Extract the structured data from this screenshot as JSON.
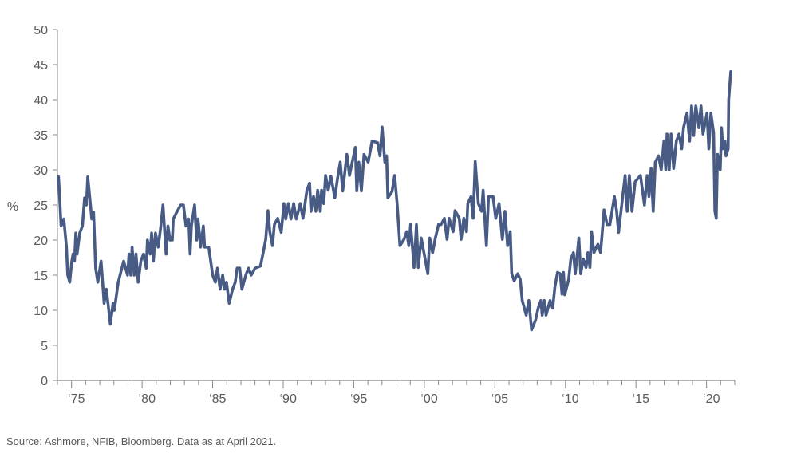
{
  "chart_data": {
    "type": "line",
    "title": "",
    "xlabel": "",
    "ylabel": "%",
    "xlim": [
      1974,
      2022
    ],
    "ylim": [
      0,
      50
    ],
    "yticks": [
      0,
      5,
      10,
      15,
      20,
      25,
      30,
      35,
      40,
      45,
      50
    ],
    "xtick_labels": [
      {
        "year": 1975,
        "label": "‘75"
      },
      {
        "year": 1980,
        "label": "‘80"
      },
      {
        "year": 1985,
        "label": "‘85"
      },
      {
        "year": 1990,
        "label": "‘90"
      },
      {
        "year": 1995,
        "label": "‘95"
      },
      {
        "year": 2000,
        "label": "‘00"
      },
      {
        "year": 2005,
        "label": "‘05"
      },
      {
        "year": 2010,
        "label": "‘10"
      },
      {
        "year": 2015,
        "label": "‘15"
      },
      {
        "year": 2020,
        "label": "‘20"
      }
    ],
    "grid": false,
    "line_color": "#475b85",
    "series": [
      {
        "x": [
          1974.08,
          1974.26,
          1974.45,
          1974.64,
          1974.73,
          1974.87,
          1975.02,
          1975.11,
          1975.21,
          1975.3,
          1975.39,
          1975.58,
          1975.77,
          1975.92,
          1976.05,
          1976.15,
          1976.34,
          1976.43,
          1976.56,
          1976.71,
          1976.86,
          1977.09,
          1977.31,
          1977.47,
          1977.75,
          1977.94,
          1978.03,
          1978.31,
          1978.69,
          1978.97,
          1979.07,
          1979.2,
          1979.29,
          1979.44,
          1979.57,
          1979.72,
          1979.91,
          1980.1,
          1980.29,
          1980.38,
          1980.57,
          1980.67,
          1980.8,
          1980.95,
          1981.14,
          1981.33,
          1981.48,
          1981.7,
          1981.83,
          1981.98,
          1982.14,
          1982.21,
          1982.46,
          1982.74,
          1982.93,
          1983.11,
          1983.3,
          1983.4,
          1983.49,
          1983.72,
          1983.87,
          1983.96,
          1984.15,
          1984.34,
          1984.43,
          1984.72,
          1985.0,
          1985.19,
          1985.34,
          1985.53,
          1985.71,
          1985.85,
          1985.98,
          1986.17,
          1986.41,
          1986.6,
          1986.73,
          1986.92,
          1987.07,
          1987.35,
          1987.54,
          1987.73,
          1988.01,
          1988.39,
          1988.58,
          1988.76,
          1988.92,
          1989.05,
          1989.24,
          1989.37,
          1989.61,
          1989.86,
          1990.05,
          1990.18,
          1990.37,
          1990.55,
          1990.74,
          1990.93,
          1991.21,
          1991.4,
          1991.68,
          1991.87,
          1991.97,
          1992.15,
          1992.31,
          1992.44,
          1992.63,
          1992.72,
          1992.87,
          1993.0,
          1993.19,
          1993.38,
          1993.66,
          1993.85,
          1994.04,
          1994.22,
          1994.51,
          1994.7,
          1994.89,
          1995.11,
          1995.21,
          1995.36,
          1995.54,
          1995.73,
          1996.02,
          1996.3,
          1996.68,
          1996.86,
          1997.01,
          1997.2,
          1997.33,
          1997.42,
          1997.71,
          1997.9,
          1998.08,
          1998.27,
          1998.56,
          1998.75,
          1998.9,
          1999.03,
          1999.27,
          1999.44,
          1999.57,
          1999.78,
          2000.25,
          2000.38,
          2000.59,
          2000.78,
          2001.01,
          2001.19,
          2001.42,
          2001.61,
          2001.76,
          2002.04,
          2002.18,
          2002.48,
          2002.61,
          2002.8,
          2002.99,
          2003.08,
          2003.31,
          2003.46,
          2003.61,
          2003.83,
          2004.06,
          2004.17,
          2004.4,
          2004.55,
          2004.87,
          2005.06,
          2005.3,
          2005.53,
          2005.72,
          2005.9,
          2006.09,
          2006.19,
          2006.37,
          2006.62,
          2006.8,
          2006.94,
          2007.22,
          2007.41,
          2007.6,
          2007.88,
          2008.07,
          2008.26,
          2008.35,
          2008.5,
          2008.63,
          2008.91,
          2009.1,
          2009.25,
          2009.44,
          2009.63,
          2009.76,
          2009.86,
          2009.95,
          2010.23,
          2010.38,
          2010.57,
          2010.7,
          2010.95,
          2011.08,
          2011.27,
          2011.46,
          2011.59,
          2011.74,
          2011.85,
          2012.02,
          2012.3,
          2012.49,
          2012.74,
          2012.96,
          2013.15,
          2013.47,
          2013.62,
          2013.77,
          2014.0,
          2014.23,
          2014.38,
          2014.53,
          2014.72,
          2014.94,
          2015.32,
          2015.6,
          2015.79,
          2015.92,
          2016.07,
          2016.22,
          2016.37,
          2016.6,
          2016.79,
          2016.98,
          2017.11,
          2017.2,
          2017.35,
          2017.49,
          2017.67,
          2017.86,
          2018.05,
          2018.24,
          2018.37,
          2018.62,
          2018.8,
          2018.94,
          2019.09,
          2019.24,
          2019.46,
          2019.61,
          2019.75,
          2020.03,
          2020.16,
          2020.31,
          2020.5,
          2020.59,
          2020.69,
          2020.78,
          2020.97,
          2021.06,
          2021.16,
          2021.31,
          2021.38,
          2021.53,
          2021.57,
          2021.72
        ],
        "y": [
          29,
          22,
          23,
          19,
          15,
          14,
          17,
          18,
          17,
          21,
          18,
          21,
          22,
          26,
          25,
          29,
          25,
          23,
          24,
          16,
          14,
          17,
          11,
          13,
          8,
          11,
          10,
          14,
          17,
          15,
          18,
          15,
          19,
          15,
          18,
          14,
          17,
          18,
          16,
          20,
          18,
          21,
          17,
          21,
          19,
          22,
          25,
          18,
          22,
          20,
          20,
          23,
          24,
          25,
          25,
          22,
          23,
          18,
          22,
          25,
          20,
          23,
          19,
          22,
          19,
          19,
          15,
          14,
          16,
          13,
          15,
          13,
          14,
          11,
          13,
          14,
          16,
          16,
          13,
          15,
          16,
          15,
          16,
          16.3,
          18.2,
          20.1,
          24.2,
          21.2,
          19.2,
          22.2,
          23.1,
          21.1,
          25.2,
          23,
          25.2,
          23,
          25.2,
          23,
          25.2,
          23.1,
          27.1,
          28.1,
          24.1,
          26.2,
          24.1,
          27.1,
          24.1,
          27.1,
          25.2,
          29.2,
          27.1,
          29.1,
          26,
          28.8,
          31.1,
          27,
          32.2,
          29.2,
          31.1,
          33.2,
          27,
          31.1,
          27,
          32.2,
          31.1,
          34.1,
          33.9,
          32,
          36.1,
          31.1,
          32,
          26,
          26.9,
          29.2,
          25,
          19.2,
          20.1,
          21.2,
          19.2,
          22.2,
          16.1,
          22.2,
          16.1,
          20.3,
          15.2,
          20.3,
          18.2,
          20.3,
          22.2,
          22.2,
          23.1,
          20.1,
          23.1,
          21.2,
          24.2,
          23.1,
          20.1,
          23.1,
          21.2,
          25.2,
          26.2,
          23.1,
          31.2,
          25.2,
          24.1,
          27.1,
          19.2,
          26.2,
          26.2,
          23.1,
          25.2,
          20.1,
          24.1,
          19.2,
          21.2,
          15.2,
          14.2,
          15.2,
          14.4,
          11.4,
          9.3,
          11.4,
          7.2,
          8.6,
          10.3,
          11.4,
          9.3,
          11.4,
          9.3,
          11.4,
          10.3,
          13.3,
          15.4,
          15.2,
          12.3,
          15.4,
          12.2,
          14.4,
          17.3,
          18.2,
          15.2,
          20.3,
          15.2,
          17.3,
          16.1,
          18.2,
          16.1,
          21.2,
          18.2,
          19.4,
          18.2,
          24.3,
          22.2,
          22.2,
          26.2,
          24.3,
          21.1,
          25.2,
          29.2,
          24.1,
          29.2,
          24.1,
          28.3,
          29.2,
          25,
          29.2,
          26.2,
          30.2,
          24.1,
          31.1,
          32,
          30,
          34.1,
          30,
          35.1,
          30,
          35.1,
          30.2,
          34.1,
          35.1,
          33,
          36,
          38.1,
          34.1,
          39.1,
          34.9,
          39.1,
          36,
          39.1,
          35.1,
          38.1,
          33,
          38.1,
          35.3,
          24.1,
          23.1,
          32.2,
          30,
          36,
          33,
          34.1,
          32,
          33,
          40,
          44
        ]
      }
    ]
  },
  "source": "Source: Ashmore, NFIB, Bloomberg. Data as at April 2021."
}
